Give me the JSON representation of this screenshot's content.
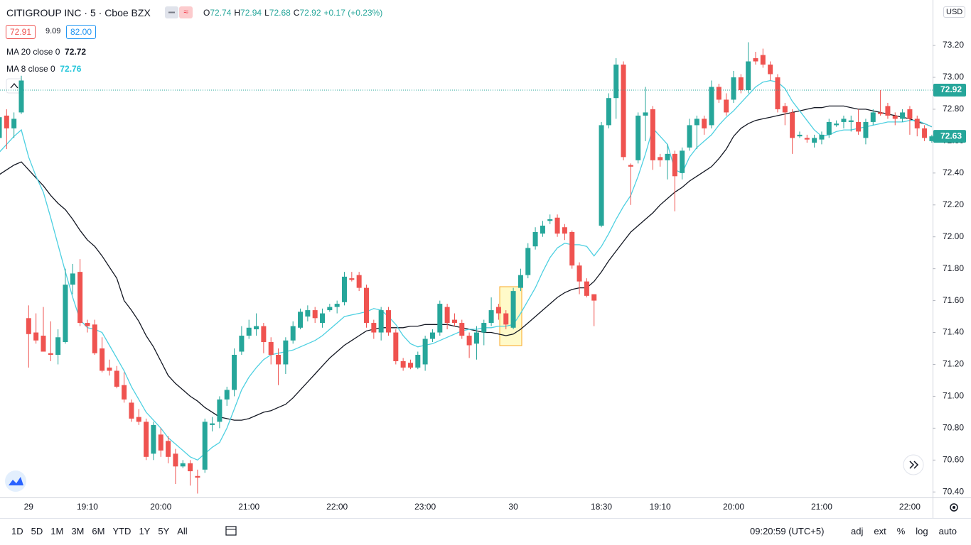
{
  "header": {
    "symbol": "CITIGROUP INC · 5 · Cboe BZX",
    "ohlc_letters": [
      "O",
      "H",
      "L",
      "C"
    ],
    "ohlc_values": [
      "72.74",
      "72.94",
      "72.68",
      "72.92"
    ],
    "change": "+0.17 (+0.23%)",
    "currency": "USD"
  },
  "legend": {
    "bid": "72.91",
    "spread": "9.09",
    "ask": "82.00",
    "ma20_name": "MA 20 close 0",
    "ma20_value": "72.72",
    "ma8_name": "MA 8 close 0",
    "ma8_value": "72.76"
  },
  "chart_data": {
    "type": "candlestick",
    "categories": [
      null,
      null,
      null,
      null,
      "29",
      null,
      null,
      null,
      null,
      null,
      null,
      null,
      "19:10",
      null,
      null,
      null,
      null,
      null,
      null,
      null,
      null,
      null,
      "20:00",
      null,
      null,
      null,
      null,
      null,
      null,
      null,
      null,
      null,
      null,
      null,
      "21:00",
      null,
      null,
      null,
      null,
      null,
      null,
      null,
      null,
      null,
      null,
      null,
      "22:00",
      null,
      null,
      null,
      null,
      null,
      null,
      null,
      null,
      null,
      null,
      null,
      "23:00",
      null,
      null,
      null,
      null,
      null,
      null,
      null,
      null,
      null,
      null,
      null,
      "30",
      null,
      null,
      null,
      null,
      null,
      null,
      null,
      null,
      null,
      null,
      null,
      "18:30",
      null,
      null,
      null,
      null,
      null,
      null,
      null,
      "19:10",
      null,
      null,
      null,
      null,
      null,
      null,
      null,
      null,
      null,
      "20:00",
      null,
      null,
      null,
      null,
      null,
      null,
      null,
      null,
      null,
      null,
      null,
      "21:00",
      null,
      null,
      null,
      null,
      null,
      null,
      null,
      null,
      null,
      null,
      null,
      "22:00",
      null,
      null,
      null
    ],
    "open": [
      72.62,
      72.76,
      72.68,
      72.78,
      71.49,
      71.4,
      71.38,
      71.27,
      71.26,
      71.34,
      71.7,
      71.78,
      71.46,
      71.45,
      71.3,
      71.18,
      71.16,
      71.07,
      70.96,
      70.87,
      70.84,
      70.64,
      70.76,
      70.72,
      70.64,
      70.56,
      70.58,
      70.5,
      70.54,
      70.82,
      70.84,
      70.98,
      71.04,
      71.28,
      71.38,
      71.42,
      71.44,
      71.34,
      71.26,
      71.2,
      71.35,
      71.43,
      71.5,
      71.54,
      71.46,
      71.54,
      71.56,
      71.59,
      71.74,
      71.76,
      71.68,
      71.46,
      71.4,
      71.54,
      71.4,
      71.22,
      71.21,
      71.18,
      71.2,
      71.36,
      71.4,
      71.56,
      71.48,
      71.46,
      71.38,
      71.33,
      71.4,
      71.46,
      71.56,
      71.52,
      71.43,
      71.68,
      71.76,
      71.94,
      72.02,
      72.1,
      72.12,
      72.06,
      72.03,
      71.82,
      71.72,
      71.64,
      72.07,
      72.7,
      72.87,
      73.08,
      72.45,
      72.48,
      72.76,
      72.8,
      72.5,
      72.48,
      72.52,
      72.4,
      72.56,
      72.7,
      72.74,
      72.7,
      72.94,
      72.86,
      72.86,
      73.0,
      72.92,
      73.12,
      73.14,
      73.08,
      73.0,
      72.82,
      72.78,
      72.63,
      72.62,
      72.59,
      72.61,
      72.64,
      72.7,
      72.72,
      72.72,
      72.72,
      72.62,
      72.72,
      72.78,
      72.82,
      72.76,
      72.74,
      72.8,
      72.74,
      72.68,
      72.6
    ],
    "high": [
      72.78,
      72.8,
      72.78,
      73.01,
      71.57,
      71.52,
      71.56,
      71.47,
      71.42,
      71.8,
      71.83,
      71.86,
      71.48,
      71.48,
      71.37,
      71.23,
      71.19,
      71.15,
      70.98,
      70.92,
      70.86,
      70.84,
      70.8,
      70.75,
      70.67,
      70.6,
      70.6,
      70.54,
      70.86,
      70.87,
      71.0,
      71.06,
      71.3,
      71.44,
      71.48,
      71.52,
      71.46,
      71.37,
      71.3,
      71.37,
      71.47,
      71.55,
      71.57,
      71.56,
      71.55,
      71.58,
      71.6,
      71.78,
      71.78,
      71.78,
      71.7,
      71.48,
      71.56,
      71.56,
      71.42,
      71.24,
      71.23,
      71.28,
      71.38,
      71.42,
      71.6,
      71.58,
      71.52,
      71.48,
      71.4,
      71.44,
      71.48,
      71.62,
      71.58,
      71.54,
      71.68,
      71.8,
      71.96,
      72.06,
      72.1,
      72.14,
      72.14,
      72.08,
      72.04,
      71.84,
      71.74,
      71.64,
      72.72,
      72.9,
      73.12,
      73.1,
      72.46,
      72.78,
      72.94,
      72.82,
      72.52,
      72.58,
      72.54,
      72.56,
      72.74,
      72.76,
      72.76,
      72.98,
      72.96,
      72.9,
      73.04,
      73.02,
      73.22,
      73.16,
      73.18,
      73.1,
      73.02,
      72.84,
      72.8,
      72.66,
      72.64,
      72.64,
      72.66,
      72.74,
      72.73,
      72.76,
      72.76,
      72.8,
      72.74,
      72.8,
      72.92,
      72.84,
      72.78,
      72.8,
      72.82,
      72.76,
      72.7,
      72.64
    ],
    "low": [
      72.55,
      72.55,
      72.62,
      72.77,
      71.18,
      71.33,
      71.28,
      71.22,
      71.2,
      71.33,
      71.64,
      71.44,
      71.4,
      71.26,
      71.15,
      71.13,
      71.05,
      70.96,
      70.84,
      70.82,
      70.6,
      70.6,
      70.62,
      70.58,
      70.45,
      70.55,
      70.44,
      70.39,
      70.52,
      70.78,
      70.8,
      70.94,
      71.0,
      71.26,
      71.36,
      71.38,
      71.27,
      71.2,
      71.07,
      71.14,
      71.33,
      71.42,
      71.47,
      71.46,
      71.43,
      71.53,
      71.52,
      71.57,
      71.72,
      71.66,
      71.43,
      71.36,
      71.35,
      71.38,
      71.2,
      71.16,
      71.17,
      71.17,
      71.16,
      71.34,
      71.38,
      71.42,
      71.44,
      71.36,
      71.24,
      71.23,
      71.32,
      71.44,
      71.48,
      71.42,
      71.42,
      71.66,
      71.74,
      71.92,
      72.0,
      72.08,
      72.0,
      71.98,
      71.8,
      71.64,
      71.62,
      71.44,
      72.06,
      72.68,
      72.74,
      72.48,
      72.2,
      72.46,
      72.6,
      72.42,
      72.44,
      72.36,
      72.16,
      72.36,
      72.54,
      72.55,
      72.64,
      72.68,
      72.84,
      72.76,
      72.84,
      72.9,
      72.9,
      73.08,
      73.06,
      72.98,
      72.78,
      72.7,
      72.52,
      72.62,
      72.59,
      72.56,
      72.58,
      72.62,
      72.69,
      72.68,
      72.66,
      72.64,
      72.58,
      72.7,
      72.76,
      72.74,
      72.7,
      72.72,
      72.64,
      72.63,
      72.6,
      72.59
    ],
    "close": [
      72.75,
      72.68,
      72.74,
      72.98,
      71.39,
      71.35,
      71.28,
      71.26,
      71.37,
      71.7,
      71.77,
      71.46,
      71.44,
      71.27,
      71.16,
      71.16,
      71.06,
      70.98,
      70.86,
      70.84,
      70.62,
      70.82,
      70.66,
      70.62,
      70.56,
      70.58,
      70.53,
      70.49,
      70.84,
      70.83,
      70.98,
      71.04,
      71.26,
      71.38,
      71.43,
      71.44,
      71.34,
      71.26,
      71.2,
      71.35,
      71.44,
      71.53,
      71.54,
      71.49,
      71.52,
      71.56,
      71.58,
      71.75,
      71.73,
      71.68,
      71.46,
      71.4,
      71.54,
      71.4,
      71.22,
      71.18,
      71.18,
      71.26,
      71.36,
      71.4,
      71.58,
      71.46,
      71.46,
      71.38,
      71.32,
      71.4,
      71.46,
      71.54,
      71.52,
      71.45,
      71.66,
      71.76,
      71.93,
      72.03,
      72.07,
      72.11,
      72.02,
      72.02,
      71.82,
      71.72,
      71.63,
      71.6,
      72.7,
      72.87,
      73.08,
      72.5,
      72.44,
      72.76,
      72.78,
      72.48,
      72.48,
      72.52,
      72.38,
      72.54,
      72.7,
      72.74,
      72.68,
      72.94,
      72.86,
      72.78,
      73.0,
      72.92,
      73.1,
      73.1,
      73.08,
      73.02,
      72.8,
      72.78,
      72.62,
      72.64,
      72.61,
      72.62,
      72.64,
      72.72,
      72.71,
      72.74,
      72.73,
      72.66,
      72.72,
      72.78,
      72.77,
      72.76,
      72.74,
      72.78,
      72.74,
      72.68,
      72.62,
      72.63
    ],
    "up_color": "#26a69a",
    "down_color": "#ef5350",
    "series": [
      {
        "name": "MA 20 close 0",
        "color": "#131722",
        "values": [
          72.39,
          72.42,
          72.45,
          72.47,
          72.42,
          72.37,
          72.32,
          72.26,
          72.21,
          72.17,
          72.11,
          72.04,
          71.98,
          71.94,
          71.88,
          71.81,
          71.74,
          71.6,
          71.54,
          71.47,
          71.38,
          71.31,
          71.22,
          71.13,
          71.08,
          71.04,
          71.0,
          70.97,
          70.93,
          70.9,
          70.87,
          70.86,
          70.85,
          70.85,
          70.86,
          70.88,
          70.9,
          70.91,
          70.93,
          70.95,
          70.99,
          71.04,
          71.09,
          71.14,
          71.19,
          71.24,
          71.28,
          71.32,
          71.35,
          71.38,
          71.41,
          71.42,
          71.43,
          71.43,
          71.43,
          71.43,
          71.44,
          71.44,
          71.45,
          71.45,
          71.45,
          71.45,
          71.44,
          71.43,
          71.42,
          71.41,
          71.4,
          71.4,
          71.39,
          71.38,
          71.39,
          71.42,
          71.46,
          71.5,
          71.54,
          71.58,
          71.62,
          71.65,
          71.67,
          71.68,
          71.68,
          71.72,
          71.78,
          71.85,
          71.91,
          71.97,
          72.03,
          72.07,
          72.11,
          72.15,
          72.2,
          72.24,
          72.28,
          72.31,
          72.35,
          72.38,
          72.41,
          72.44,
          72.49,
          72.55,
          72.63,
          72.68,
          72.71,
          72.73,
          72.74,
          72.75,
          72.76,
          72.77,
          72.78,
          72.79,
          72.8,
          72.81,
          72.81,
          72.82,
          72.82,
          72.82,
          72.81,
          72.8,
          72.8,
          72.79,
          72.78,
          72.77,
          72.76,
          72.75,
          72.74,
          72.72,
          72.71,
          72.69
        ]
      },
      {
        "name": "MA 8 close 0",
        "color": "#4dd0e1",
        "values": [
          72.53,
          72.58,
          72.63,
          72.67,
          72.5,
          72.38,
          72.28,
          72.12,
          71.95,
          71.78,
          71.62,
          71.48,
          71.43,
          71.42,
          71.4,
          71.32,
          71.24,
          71.16,
          71.06,
          70.98,
          70.9,
          70.85,
          70.8,
          70.74,
          70.7,
          70.66,
          70.62,
          70.6,
          70.64,
          70.68,
          70.71,
          70.8,
          70.92,
          71.04,
          71.12,
          71.18,
          71.23,
          71.26,
          71.27,
          71.28,
          71.29,
          71.31,
          71.33,
          71.35,
          71.38,
          71.42,
          71.46,
          71.5,
          71.51,
          71.52,
          71.53,
          71.55,
          71.54,
          71.5,
          71.45,
          71.38,
          71.33,
          71.31,
          71.32,
          71.33,
          71.35,
          71.37,
          71.39,
          71.41,
          71.42,
          71.42,
          71.43,
          71.43,
          71.44,
          71.44,
          71.45,
          71.52,
          71.6,
          71.68,
          71.78,
          71.87,
          71.93,
          71.96,
          71.95,
          71.95,
          71.94,
          71.88,
          71.94,
          72.02,
          72.11,
          72.19,
          72.26,
          72.38,
          72.52,
          72.68,
          72.63,
          72.58,
          72.42,
          72.4,
          72.5,
          72.56,
          72.6,
          72.64,
          72.7,
          72.75,
          72.79,
          72.84,
          72.89,
          72.94,
          72.97,
          72.98,
          72.97,
          72.93,
          72.85,
          72.79,
          72.73,
          72.67,
          72.63,
          72.64,
          72.66,
          72.67,
          72.67,
          72.68,
          72.69,
          72.7,
          72.71,
          72.72,
          72.72,
          72.72,
          72.73,
          72.73,
          72.71,
          72.69
        ]
      }
    ],
    "ylim": [
      70.37,
      73.485
    ],
    "yticks": [
      {
        "value": 70.4,
        "label": "70.40"
      },
      {
        "value": 70.6,
        "label": "70.60"
      },
      {
        "value": 70.8,
        "label": "70.80"
      },
      {
        "value": 71.0,
        "label": "71.00"
      },
      {
        "value": 71.2,
        "label": "71.20"
      },
      {
        "value": 71.4,
        "label": "71.40"
      },
      {
        "value": 71.6,
        "label": "71.60"
      },
      {
        "value": 71.8,
        "label": "71.80"
      },
      {
        "value": 72.0,
        "label": "72.00"
      },
      {
        "value": 72.2,
        "label": "72.20"
      },
      {
        "value": 72.4,
        "label": "72.40"
      },
      {
        "value": 72.6,
        "label": "72.60"
      },
      {
        "value": 72.8,
        "label": "72.80"
      },
      {
        "value": 73.0,
        "label": "73.00"
      },
      {
        "value": 73.2,
        "label": "73.20"
      }
    ],
    "price_labels": [
      72.92,
      72.63
    ],
    "grid": false
  },
  "toolbar": {
    "periods": [
      "1D",
      "5D",
      "1M",
      "3M",
      "6M",
      "YTD",
      "1Y",
      "5Y",
      "All"
    ],
    "clock": "09:20:59 (UTC+5)",
    "options": [
      "adj",
      "ext",
      "%",
      "log",
      "auto"
    ]
  }
}
